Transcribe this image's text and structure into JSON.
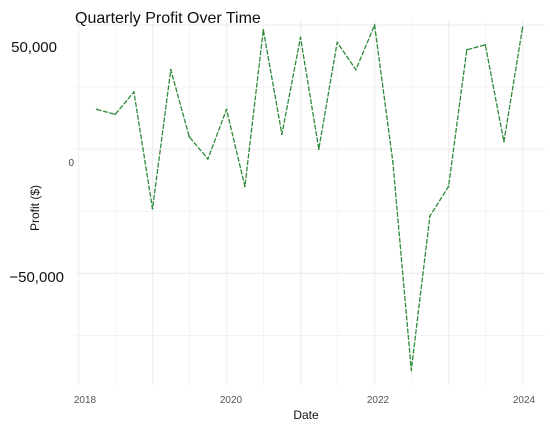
{
  "chart_data": {
    "type": "line",
    "title": "Quarterly Profit Over Time",
    "xlabel": "Date",
    "ylabel": "Profit ($)",
    "x_ticks": [
      "2018",
      "2020",
      "2022",
      "2024"
    ],
    "y_ticks": [
      {
        "value": 50000,
        "label": "50,000"
      },
      {
        "value": 0,
        "label": "0"
      },
      {
        "value": -50000,
        "label": "−50,000"
      }
    ],
    "xlim": [
      2017.95,
      2024.3
    ],
    "ylim": [
      -95000,
      52000
    ],
    "grid": true,
    "legend": "none",
    "colors": {
      "line": "#2e8b3a",
      "grid": "#ebebeb"
    },
    "series": [
      {
        "x": [
          "2018-03-31",
          "2018-06-30",
          "2018-09-30",
          "2018-12-31",
          "2019-03-31",
          "2019-06-30",
          "2019-09-30",
          "2019-12-31",
          "2020-03-31",
          "2020-06-30",
          "2020-09-30",
          "2020-12-31",
          "2021-03-31",
          "2021-06-30",
          "2021-09-30",
          "2021-12-31",
          "2022-03-31",
          "2022-06-30",
          "2022-09-30",
          "2022-12-31",
          "2023-03-31",
          "2023-06-30",
          "2023-09-30",
          "2023-12-31"
        ],
        "values": [
          16000,
          14000,
          23000,
          -24000,
          32000,
          5000,
          -4000,
          16000,
          -15000,
          48000,
          6000,
          45000,
          0,
          43000,
          32000,
          50000,
          -5000,
          -89000,
          -27000,
          -15000,
          40000,
          42000,
          3000,
          49000
        ]
      }
    ]
  }
}
